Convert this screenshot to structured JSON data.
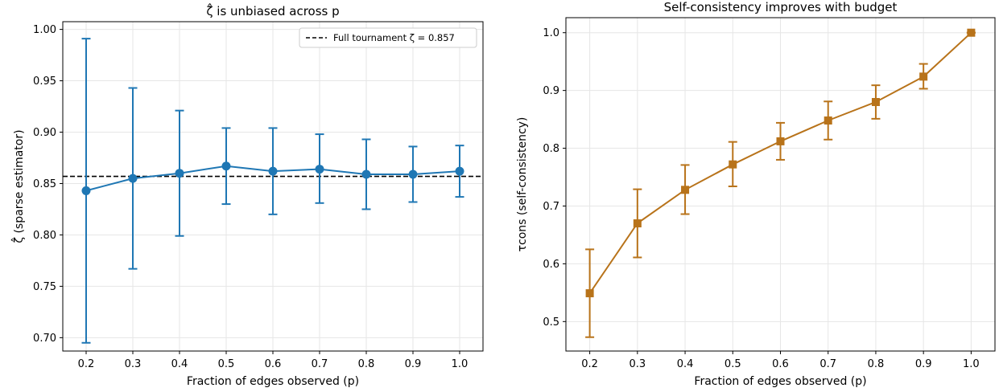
{
  "chart_data": [
    {
      "type": "line",
      "title": "ζ̂ is unbiased across p",
      "xlabel": "Fraction of edges observed (p)",
      "ylabel": "ζ̂ (sparse estimator)",
      "xlim": [
        0.15,
        1.05
      ],
      "ylim": [
        0.687,
        1.0075
      ],
      "x": [
        0.2,
        0.3,
        0.4,
        0.5,
        0.6,
        0.7,
        0.8,
        0.9,
        1.0
      ],
      "x_ticks": [
        "0.2",
        "0.3",
        "0.4",
        "0.5",
        "0.6",
        "0.7",
        "0.8",
        "0.9",
        "1.0"
      ],
      "y_ticks": [
        "0.70",
        "0.75",
        "0.80",
        "0.85",
        "0.90",
        "0.95",
        "1.00"
      ],
      "y_tick_values": [
        0.7,
        0.75,
        0.8,
        0.85,
        0.9,
        0.95,
        1.0
      ],
      "series": [
        {
          "values": [
            0.843,
            0.855,
            0.86,
            0.867,
            0.862,
            0.864,
            0.859,
            0.859,
            0.862
          ],
          "err_low": [
            0.695,
            0.767,
            0.799,
            0.83,
            0.82,
            0.831,
            0.825,
            0.832,
            0.837
          ],
          "err_high": [
            0.991,
            0.943,
            0.921,
            0.904,
            0.904,
            0.898,
            0.893,
            0.886,
            0.887
          ],
          "color": "#1f77b4",
          "marker": "circle"
        }
      ],
      "reference_line": {
        "label": "Full tournament ζ = 0.857",
        "value": 0.857,
        "color": "#000000",
        "style": "dashed"
      },
      "legend": "top-right",
      "grid": true
    },
    {
      "type": "line",
      "title": "Self-consistency improves with budget",
      "xlabel": "Fraction of edges observed (p)",
      "ylabel": "τcons (self-consistency)",
      "xlim": [
        0.15,
        1.05
      ],
      "ylim": [
        0.449,
        1.026
      ],
      "x": [
        0.2,
        0.3,
        0.4,
        0.5,
        0.6,
        0.7,
        0.8,
        0.9,
        1.0
      ],
      "x_ticks": [
        "0.2",
        "0.3",
        "0.4",
        "0.5",
        "0.6",
        "0.7",
        "0.8",
        "0.9",
        "1.0"
      ],
      "y_ticks": [
        "0.5",
        "0.6",
        "0.7",
        "0.8",
        "0.9",
        "1.0"
      ],
      "y_tick_values": [
        0.5,
        0.6,
        0.7,
        0.8,
        0.9,
        1.0
      ],
      "series": [
        {
          "values": [
            0.549,
            0.67,
            0.728,
            0.772,
            0.812,
            0.848,
            0.88,
            0.924,
            1.0
          ],
          "err_low": [
            0.473,
            0.611,
            0.686,
            0.734,
            0.78,
            0.815,
            0.851,
            0.903,
            1.0
          ],
          "err_high": [
            0.625,
            0.729,
            0.771,
            0.811,
            0.844,
            0.881,
            0.909,
            0.946,
            1.0
          ],
          "color": "#b8731a",
          "marker": "square"
        }
      ],
      "grid": true
    }
  ]
}
